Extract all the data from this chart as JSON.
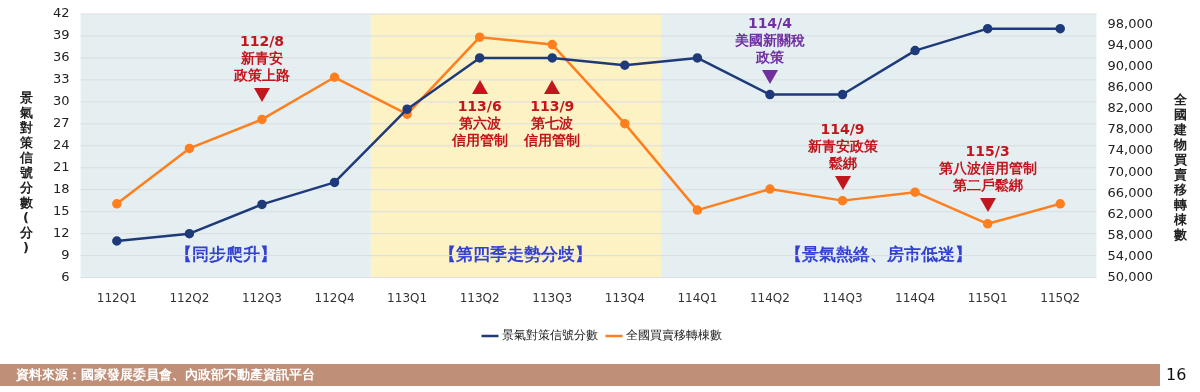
{
  "chart_data": {
    "type": "line",
    "ylabel": "景氣對策信號分數(分)",
    "y2label": "全國建物買賣移轉棟數",
    "categories": [
      "112Q1",
      "112Q2",
      "112Q3",
      "112Q4",
      "113Q1",
      "113Q2",
      "113Q3",
      "113Q4",
      "114Q1",
      "114Q2",
      "114Q3",
      "114Q4",
      "115Q1",
      "115Q2"
    ],
    "series": [
      {
        "name": "景氣對策信號分數",
        "color": "#1f3a7a",
        "values": [
          11,
          12,
          16,
          19,
          29,
          36,
          36,
          35,
          36,
          31,
          31,
          37,
          40,
          40
        ]
      },
      {
        "name": "全國買賣移轉棟數",
        "color": "#ff7f1e",
        "axis": "y2",
        "values": [
          64000,
          74500,
          80000,
          88000,
          81000,
          95600,
          94200,
          79200,
          62800,
          66800,
          64600,
          66200,
          60200,
          64000
        ]
      }
    ],
    "ylim": [
      6,
      42
    ],
    "yticks": [
      6,
      9,
      12,
      15,
      18,
      21,
      24,
      27,
      30,
      33,
      36,
      39,
      42
    ],
    "y2lim": [
      50000,
      100000
    ],
    "y2ticks": [
      {
        "value": 50000,
        "label": "50,000"
      },
      {
        "value": 54000,
        "label": "54,000"
      },
      {
        "value": 58000,
        "label": "58,000"
      },
      {
        "value": 62000,
        "label": "62,000"
      },
      {
        "value": 66000,
        "label": "66,000"
      },
      {
        "value": 70000,
        "label": "70,000"
      },
      {
        "value": 74000,
        "label": "74,000"
      },
      {
        "value": 78000,
        "label": "78,000"
      },
      {
        "value": 82000,
        "label": "82,000"
      },
      {
        "value": 86000,
        "label": "86,000"
      },
      {
        "value": 90000,
        "label": "90,000"
      },
      {
        "value": 94000,
        "label": "94,000"
      },
      {
        "value": 98000,
        "label": "98,000"
      }
    ],
    "bands": [
      {
        "axis": "x",
        "from": "112Q1",
        "to": "112Q4",
        "label": "【同步爬升】",
        "color": "#e5eff2"
      },
      {
        "axis": "x",
        "from": "113Q1",
        "to": "113Q4",
        "label": "【第四季走勢分歧】",
        "color": "#fdf2c4"
      },
      {
        "axis": "x",
        "from": "114Q1",
        "to": "115Q2",
        "label": "【景氣熱絡、房市低迷】",
        "color": "#e5eff2"
      }
    ],
    "annotations": [
      "112/8新青安政策上路",
      "113/6第六波信用管制",
      "113/9第七波信用管制",
      "114/4美國新關稅政策",
      "114/9新青安政策鬆綁",
      "115/3第八波信用管制第二戶鬆綁",
      "資料來源：國家發展委員會、內政部不動產資訊平台",
      "16"
    ],
    "grid": "y",
    "legend": "bottom",
    "marker": "circle",
    "line_style": "solid"
  }
}
